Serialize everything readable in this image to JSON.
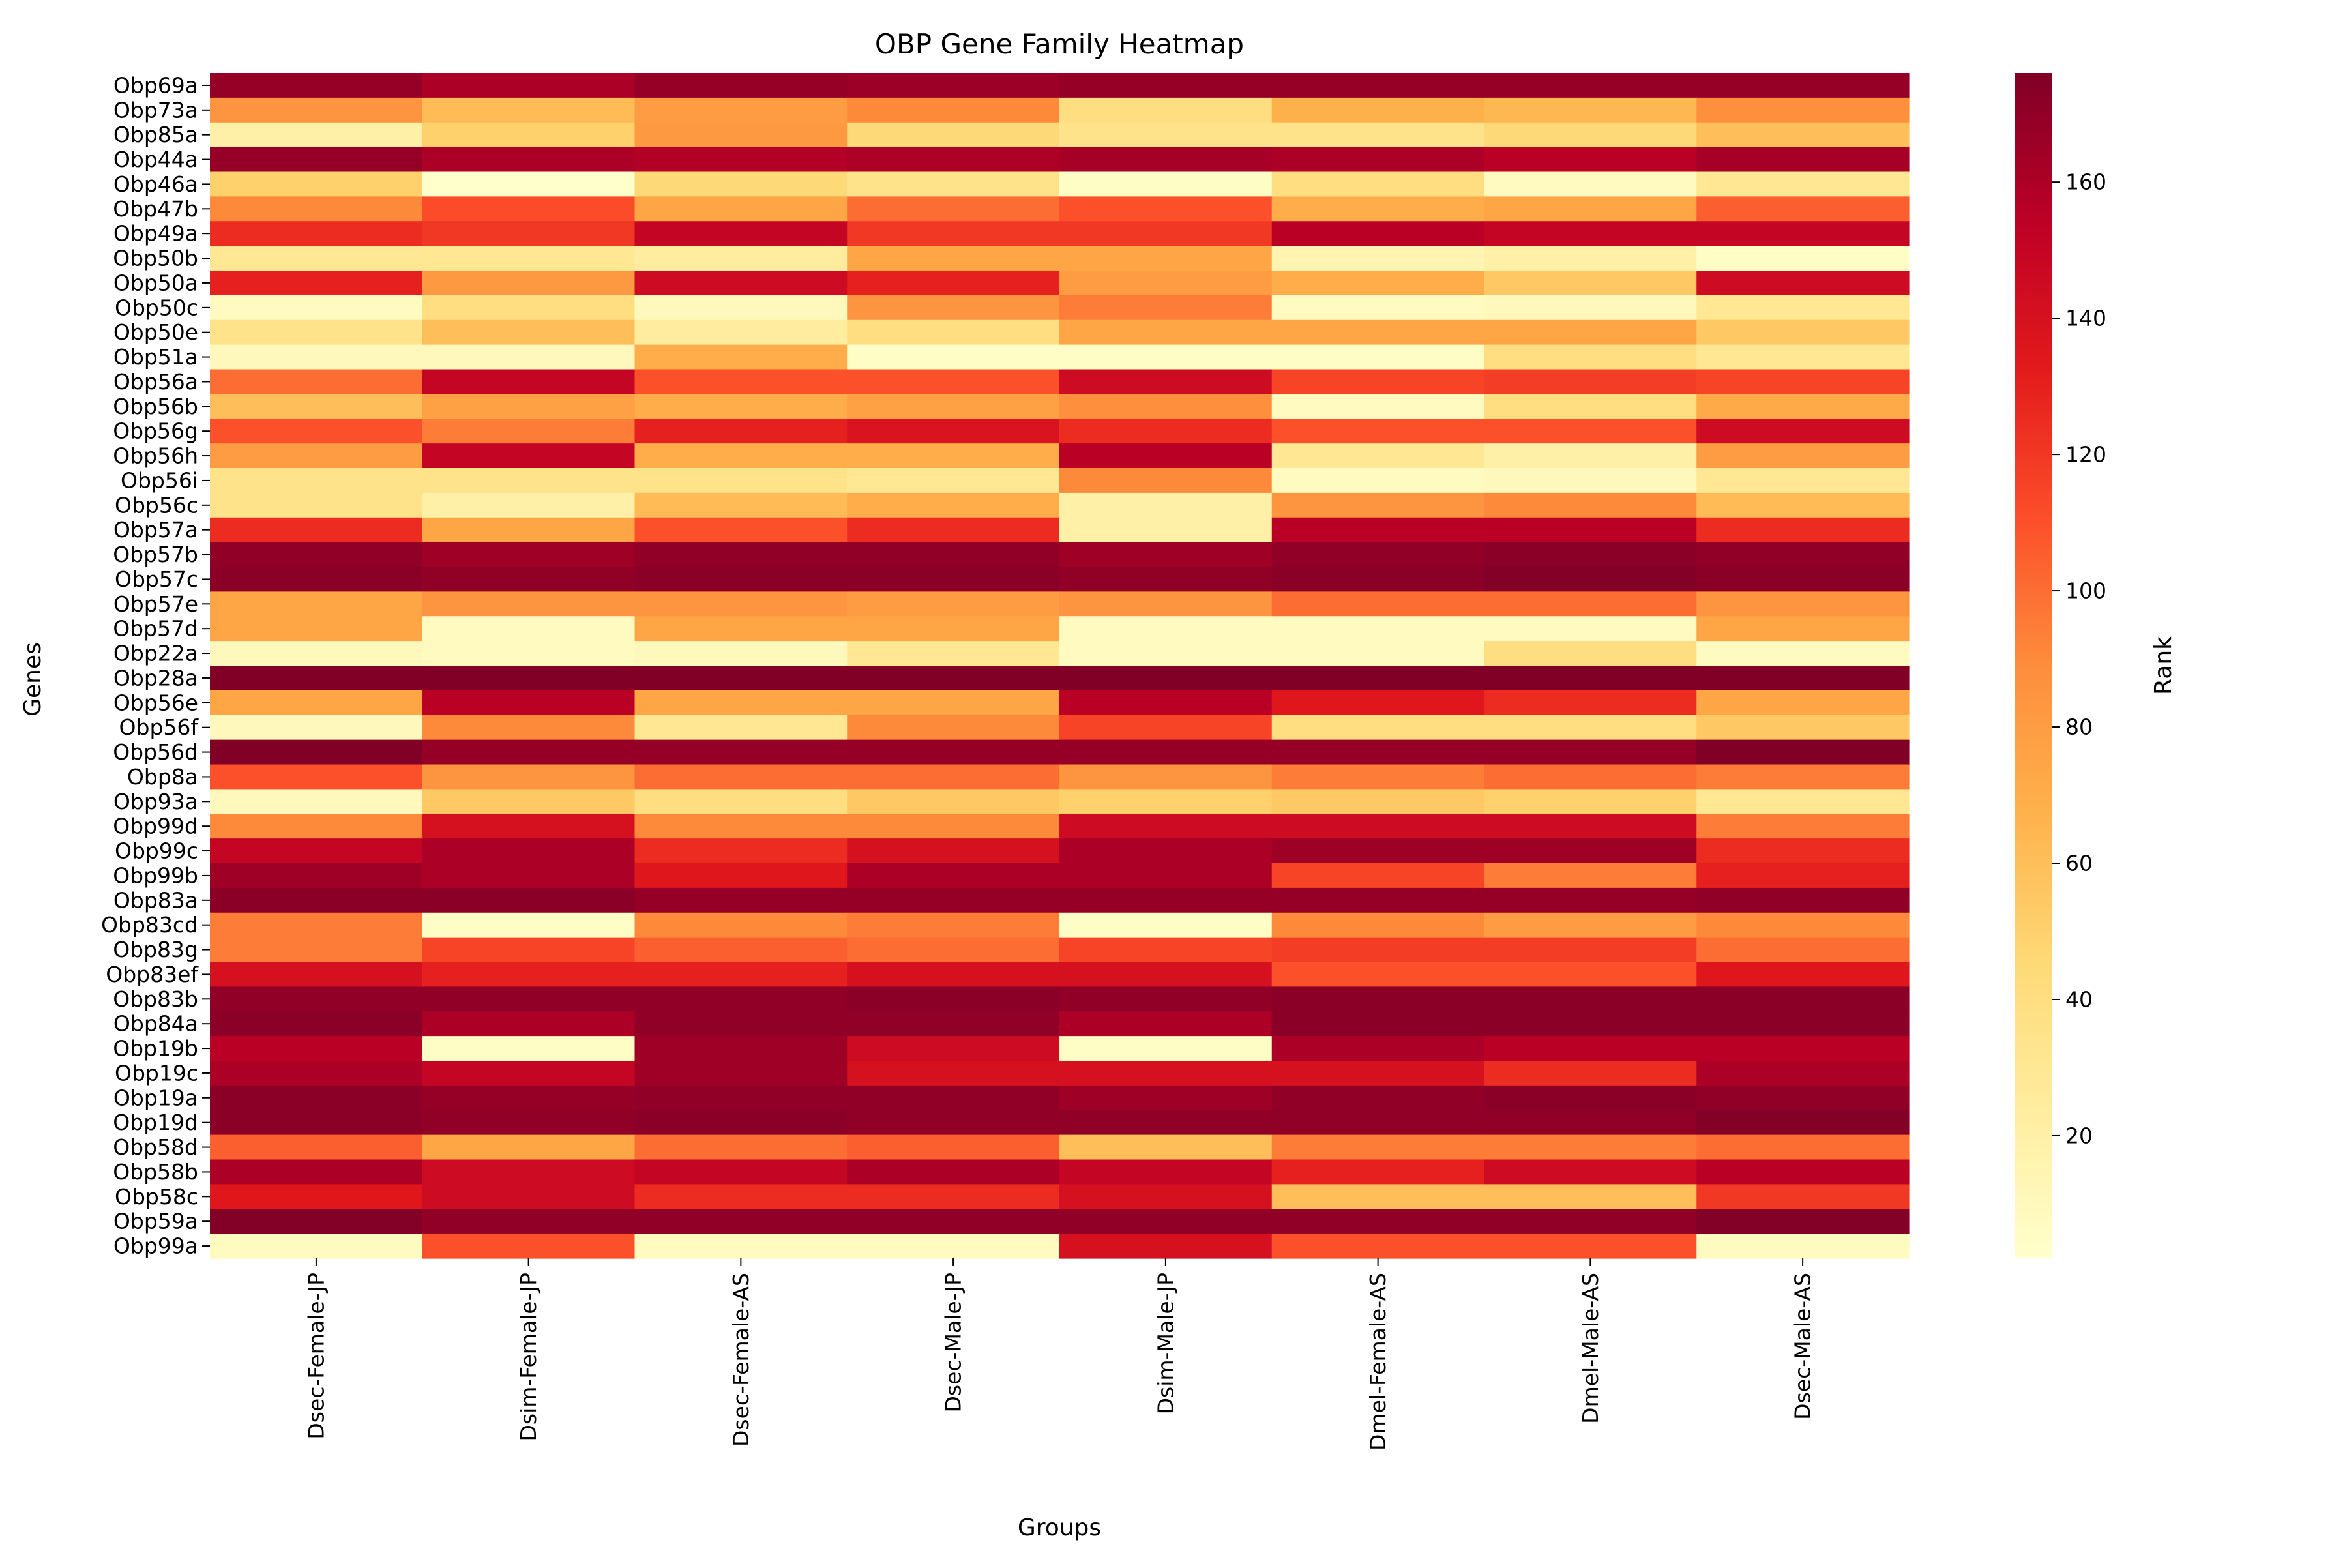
{
  "chart_data": {
    "type": "heatmap",
    "title": "OBP Gene Family Heatmap",
    "xlabel": "Groups",
    "ylabel": "Genes",
    "colorbar": {
      "label": "Rank",
      "ticks": [
        20,
        40,
        60,
        80,
        100,
        120,
        140,
        160
      ],
      "range": [
        2,
        176
      ],
      "colormap": "YlOrRd"
    },
    "x_categories": [
      "Dsec-Female-JP",
      "Dsim-Female-JP",
      "Dsec-Female-AS",
      "Dsec-Male-JP",
      "Dsim-Male-JP",
      "Dmel-Female-AS",
      "Dmel-Male-AS",
      "Dsec-Male-AS"
    ],
    "y_categories": [
      "Obp69a",
      "Obp73a",
      "Obp85a",
      "Obp44a",
      "Obp46a",
      "Obp47b",
      "Obp49a",
      "Obp50b",
      "Obp50a",
      "Obp50c",
      "Obp50e",
      "Obp51a",
      "Obp56a",
      "Obp56b",
      "Obp56g",
      "Obp56h",
      "Obp56i",
      "Obp56c",
      "Obp57a",
      "Obp57b",
      "Obp57c",
      "Obp57e",
      "Obp57d",
      "Obp22a",
      "Obp28a",
      "Obp56e",
      "Obp56f",
      "Obp56d",
      "Obp8a",
      "Obp93a",
      "Obp99d",
      "Obp99c",
      "Obp99b",
      "Obp83a",
      "Obp83cd",
      "Obp83g",
      "Obp83ef",
      "Obp83b",
      "Obp84a",
      "Obp19b",
      "Obp19c",
      "Obp19a",
      "Obp19d",
      "Obp58d",
      "Obp58b",
      "Obp58c",
      "Obp59a",
      "Obp99a"
    ],
    "values": [
      [
        168,
        160,
        168,
        166,
        168,
        168,
        168,
        168
      ],
      [
        85,
        62,
        80,
        90,
        40,
        68,
        64,
        88
      ],
      [
        20,
        50,
        82,
        45,
        35,
        35,
        45,
        60
      ],
      [
        168,
        160,
        158,
        160,
        162,
        160,
        155,
        162
      ],
      [
        50,
        2,
        45,
        35,
        5,
        40,
        8,
        30
      ],
      [
        90,
        112,
        75,
        100,
        110,
        70,
        75,
        105
      ],
      [
        125,
        120,
        150,
        120,
        120,
        155,
        150,
        150
      ],
      [
        30,
        30,
        25,
        75,
        75,
        15,
        20,
        5
      ],
      [
        130,
        82,
        145,
        130,
        80,
        70,
        55,
        145
      ],
      [
        8,
        40,
        10,
        85,
        95,
        8,
        10,
        30
      ],
      [
        35,
        60,
        25,
        40,
        75,
        75,
        75,
        55
      ],
      [
        10,
        10,
        70,
        5,
        5,
        5,
        40,
        30
      ],
      [
        100,
        150,
        110,
        110,
        145,
        115,
        118,
        115
      ],
      [
        60,
        78,
        70,
        78,
        88,
        8,
        40,
        72
      ],
      [
        110,
        95,
        130,
        138,
        125,
        110,
        110,
        145
      ],
      [
        80,
        150,
        70,
        70,
        155,
        30,
        20,
        80
      ],
      [
        35,
        35,
        35,
        30,
        90,
        8,
        10,
        30
      ],
      [
        35,
        20,
        62,
        70,
        20,
        85,
        90,
        62
      ],
      [
        125,
        75,
        110,
        125,
        20,
        155,
        155,
        125
      ],
      [
        170,
        165,
        170,
        170,
        165,
        170,
        172,
        170
      ],
      [
        172,
        170,
        172,
        172,
        170,
        172,
        175,
        172
      ],
      [
        75,
        85,
        85,
        80,
        85,
        100,
        100,
        85
      ],
      [
        75,
        8,
        75,
        75,
        8,
        8,
        8,
        75
      ],
      [
        10,
        8,
        10,
        30,
        8,
        8,
        40,
        8
      ],
      [
        176,
        176,
        176,
        176,
        176,
        176,
        176,
        176
      ],
      [
        75,
        155,
        75,
        75,
        155,
        135,
        125,
        75
      ],
      [
        10,
        90,
        30,
        90,
        115,
        40,
        40,
        55
      ],
      [
        176,
        168,
        168,
        168,
        168,
        168,
        168,
        176
      ],
      [
        110,
        85,
        100,
        100,
        85,
        95,
        100,
        95
      ],
      [
        10,
        55,
        40,
        55,
        50,
        55,
        50,
        30
      ],
      [
        90,
        140,
        90,
        90,
        145,
        145,
        145,
        95
      ],
      [
        150,
        160,
        125,
        140,
        160,
        165,
        165,
        125
      ],
      [
        165,
        160,
        135,
        160,
        160,
        115,
        95,
        130
      ],
      [
        172,
        172,
        168,
        168,
        168,
        168,
        168,
        170
      ],
      [
        95,
        5,
        90,
        95,
        5,
        90,
        80,
        90
      ],
      [
        95,
        115,
        105,
        100,
        115,
        118,
        118,
        100
      ],
      [
        140,
        130,
        130,
        140,
        140,
        110,
        110,
        135
      ],
      [
        170,
        170,
        170,
        172,
        170,
        172,
        172,
        172
      ],
      [
        172,
        160,
        170,
        170,
        160,
        172,
        172,
        172
      ],
      [
        155,
        5,
        165,
        145,
        5,
        160,
        155,
        155
      ],
      [
        160,
        150,
        165,
        140,
        140,
        140,
        125,
        160
      ],
      [
        172,
        168,
        170,
        170,
        165,
        170,
        172,
        170
      ],
      [
        172,
        170,
        172,
        170,
        170,
        170,
        170,
        175
      ],
      [
        105,
        75,
        100,
        105,
        60,
        95,
        95,
        100
      ],
      [
        160,
        145,
        150,
        160,
        150,
        130,
        145,
        155
      ],
      [
        135,
        145,
        125,
        125,
        140,
        60,
        60,
        120
      ],
      [
        175,
        170,
        170,
        170,
        170,
        170,
        170,
        175
      ],
      [
        8,
        110,
        8,
        8,
        140,
        110,
        110,
        8
      ]
    ]
  }
}
